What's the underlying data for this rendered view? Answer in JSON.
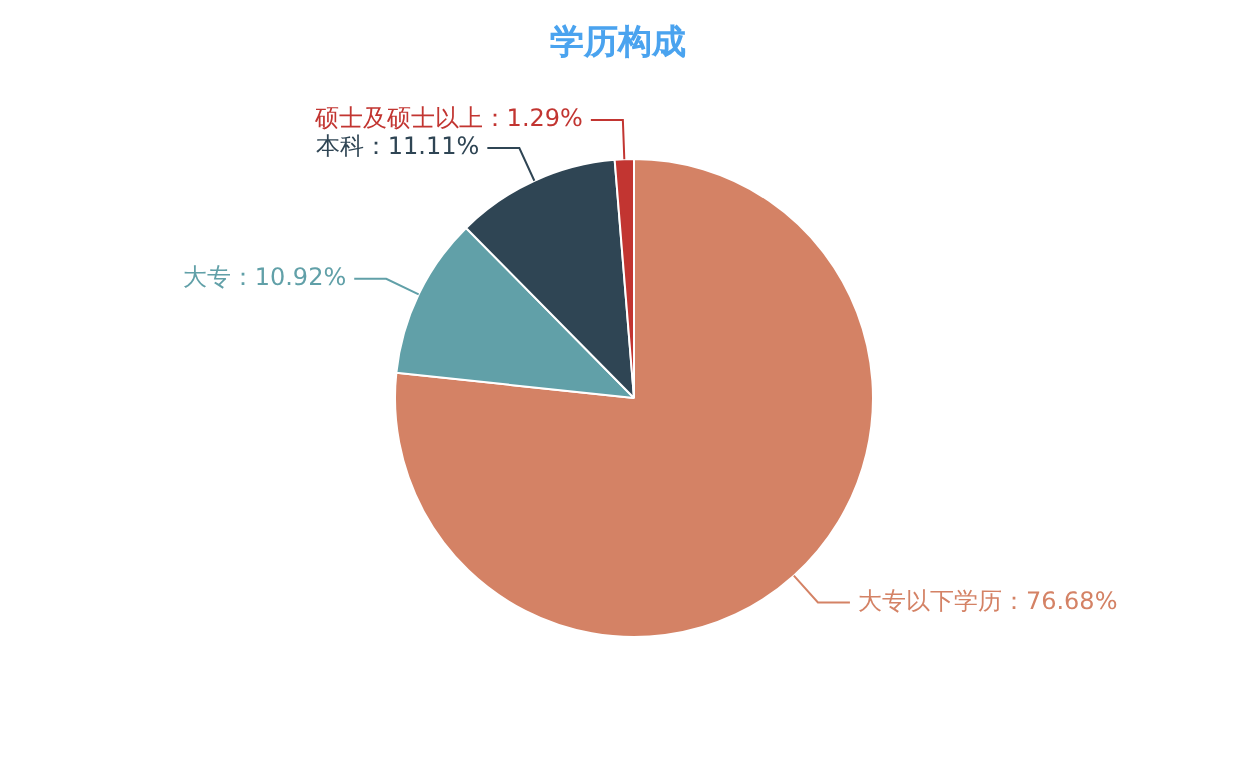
{
  "chart_data": {
    "type": "pie",
    "title": "学历构成",
    "categories": [
      "大专以下学历",
      "大专",
      "本科",
      "硕士及硕士以上"
    ],
    "values": [
      76.68,
      10.92,
      11.11,
      1.29
    ],
    "colors": [
      "#d48265",
      "#61a0a8",
      "#2f4554",
      "#c23531"
    ],
    "value_labels": [
      "：76.68%",
      "：10.92%",
      "：11.11%",
      "：1.29%"
    ],
    "legend": false
  }
}
